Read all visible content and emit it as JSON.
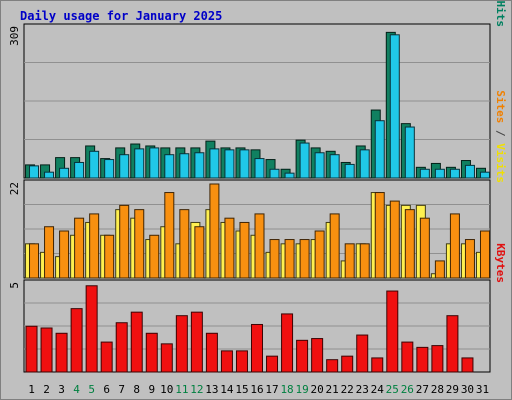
{
  "chart_data": {
    "type": "bar",
    "title": "Daily usage for January 2025",
    "categories": [
      "1",
      "2",
      "3",
      "4",
      "5",
      "6",
      "7",
      "8",
      "9",
      "10",
      "11",
      "12",
      "13",
      "14",
      "15",
      "16",
      "17",
      "18",
      "19",
      "20",
      "21",
      "22",
      "23",
      "24",
      "25",
      "26",
      "27",
      "28",
      "29",
      "30",
      "31"
    ],
    "weekend_days": [
      4,
      5,
      11,
      12,
      18,
      19,
      25,
      26
    ],
    "panels": [
      {
        "id": "top",
        "ymax": 309,
        "ymax_label": "309",
        "axis_labels": [
          {
            "text": "Pages",
            "color": "#00c8e6"
          },
          {
            "text": " / ",
            "color": "#444444"
          },
          {
            "text": "Files",
            "color": "#0050c8"
          },
          {
            "text": " / ",
            "color": "#444444"
          },
          {
            "text": "Hits",
            "color": "#008060"
          }
        ],
        "series": [
          {
            "name": "Hits",
            "color": "#108060",
            "values": [
              27,
              27,
              42,
              42,
              66,
              40,
              62,
              70,
              66,
              62,
              62,
              62,
              76,
              62,
              62,
              58,
              38,
              18,
              78,
              62,
              55,
              32,
              66,
              140,
              300,
              112,
              22,
              30,
              22,
              36,
              20
            ]
          },
          {
            "name": "Files",
            "color": "#20c8e8",
            "values": [
              25,
              12,
              20,
              32,
              55,
              38,
              48,
              60,
              62,
              48,
              50,
              52,
              60,
              58,
              58,
              40,
              18,
              10,
              72,
              52,
              48,
              28,
              58,
              118,
              295,
              105,
              18,
              18,
              18,
              26,
              12
            ]
          }
        ]
      },
      {
        "id": "middle",
        "ymax": 22,
        "ymax_label": "22",
        "axis_labels": [
          {
            "text": "Sites",
            "color": "#f08000"
          },
          {
            "text": " / ",
            "color": "#444444"
          },
          {
            "text": "Visits",
            "color": "#f0e000"
          }
        ],
        "series": [
          {
            "name": "Visits",
            "color": "#fff050",
            "values": [
              8,
              6,
              5,
              10,
              13,
              10,
              16,
              14,
              9,
              12,
              8,
              13,
              16,
              13,
              11,
              10,
              6,
              8,
              8,
              9,
              13,
              4,
              8,
              20,
              17,
              17,
              17,
              1,
              8,
              8,
              6
            ]
          },
          {
            "name": "Sites",
            "color": "#f89010",
            "values": [
              8,
              12,
              11,
              14,
              15,
              10,
              17,
              16,
              10,
              20,
              16,
              12,
              22,
              14,
              13,
              15,
              9,
              9,
              9,
              11,
              15,
              8,
              8,
              20,
              18,
              16,
              14,
              4,
              15,
              9,
              11
            ]
          }
        ]
      },
      {
        "id": "bottom",
        "ymax": 5,
        "ymax_label": "5",
        "axis_labels": [
          {
            "text": "KBytes",
            "color": "#e01010"
          }
        ],
        "series": [
          {
            "name": "KBytes",
            "color": "#f01010",
            "values": [
              2.6,
              2.5,
              2.2,
              3.6,
              4.9,
              1.7,
              2.8,
              3.4,
              2.2,
              1.6,
              3.2,
              3.4,
              2.2,
              1.2,
              1.2,
              2.7,
              0.9,
              3.3,
              1.8,
              1.9,
              0.7,
              0.9,
              2.1,
              0.8,
              4.6,
              1.7,
              1.4,
              1.5,
              3.2,
              0.8,
              0
            ]
          }
        ]
      }
    ]
  }
}
